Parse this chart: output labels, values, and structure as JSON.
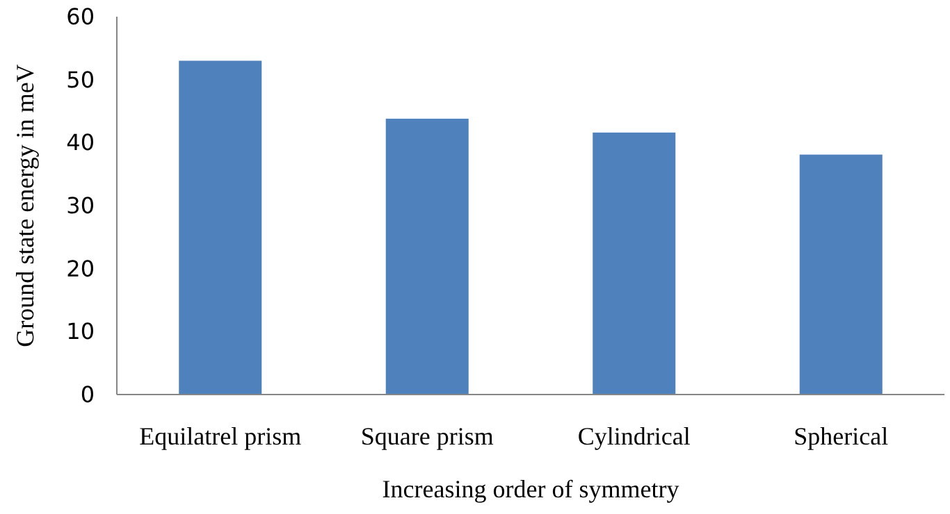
{
  "chart_data": {
    "type": "bar",
    "xlabel": "Increasing order of symmetry",
    "ylabel": "Ground state energy  in meV",
    "categories": [
      "Equilatrel prism",
      "Square prism",
      "Cylindrical",
      "Spherical"
    ],
    "values": [
      53,
      43.8,
      41.6,
      38.1
    ],
    "color": "#4f81bd",
    "ylim": [
      0,
      60
    ],
    "yticks": [
      0,
      10,
      20,
      30,
      40,
      50,
      60
    ],
    "grid": false
  }
}
